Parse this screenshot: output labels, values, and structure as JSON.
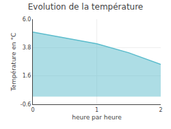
{
  "chart_data": {
    "type": "area",
    "title": "Evolution de la température",
    "xlabel": "heure par heure",
    "ylabel": "Température en °C",
    "x": [
      0,
      0.5,
      1.0,
      1.5,
      2.0
    ],
    "values": [
      5.0,
      4.55,
      4.1,
      3.4,
      2.5
    ],
    "color": "#5bbccc",
    "xlim": [
      0,
      2
    ],
    "ylim": [
      -0.6,
      6.0
    ],
    "xticks": [
      0,
      1,
      2
    ],
    "yticks": [
      -0.6,
      1.6,
      3.8,
      {
        "value": 6.0,
        "label": "6.0"
      }
    ],
    "grid": true
  }
}
